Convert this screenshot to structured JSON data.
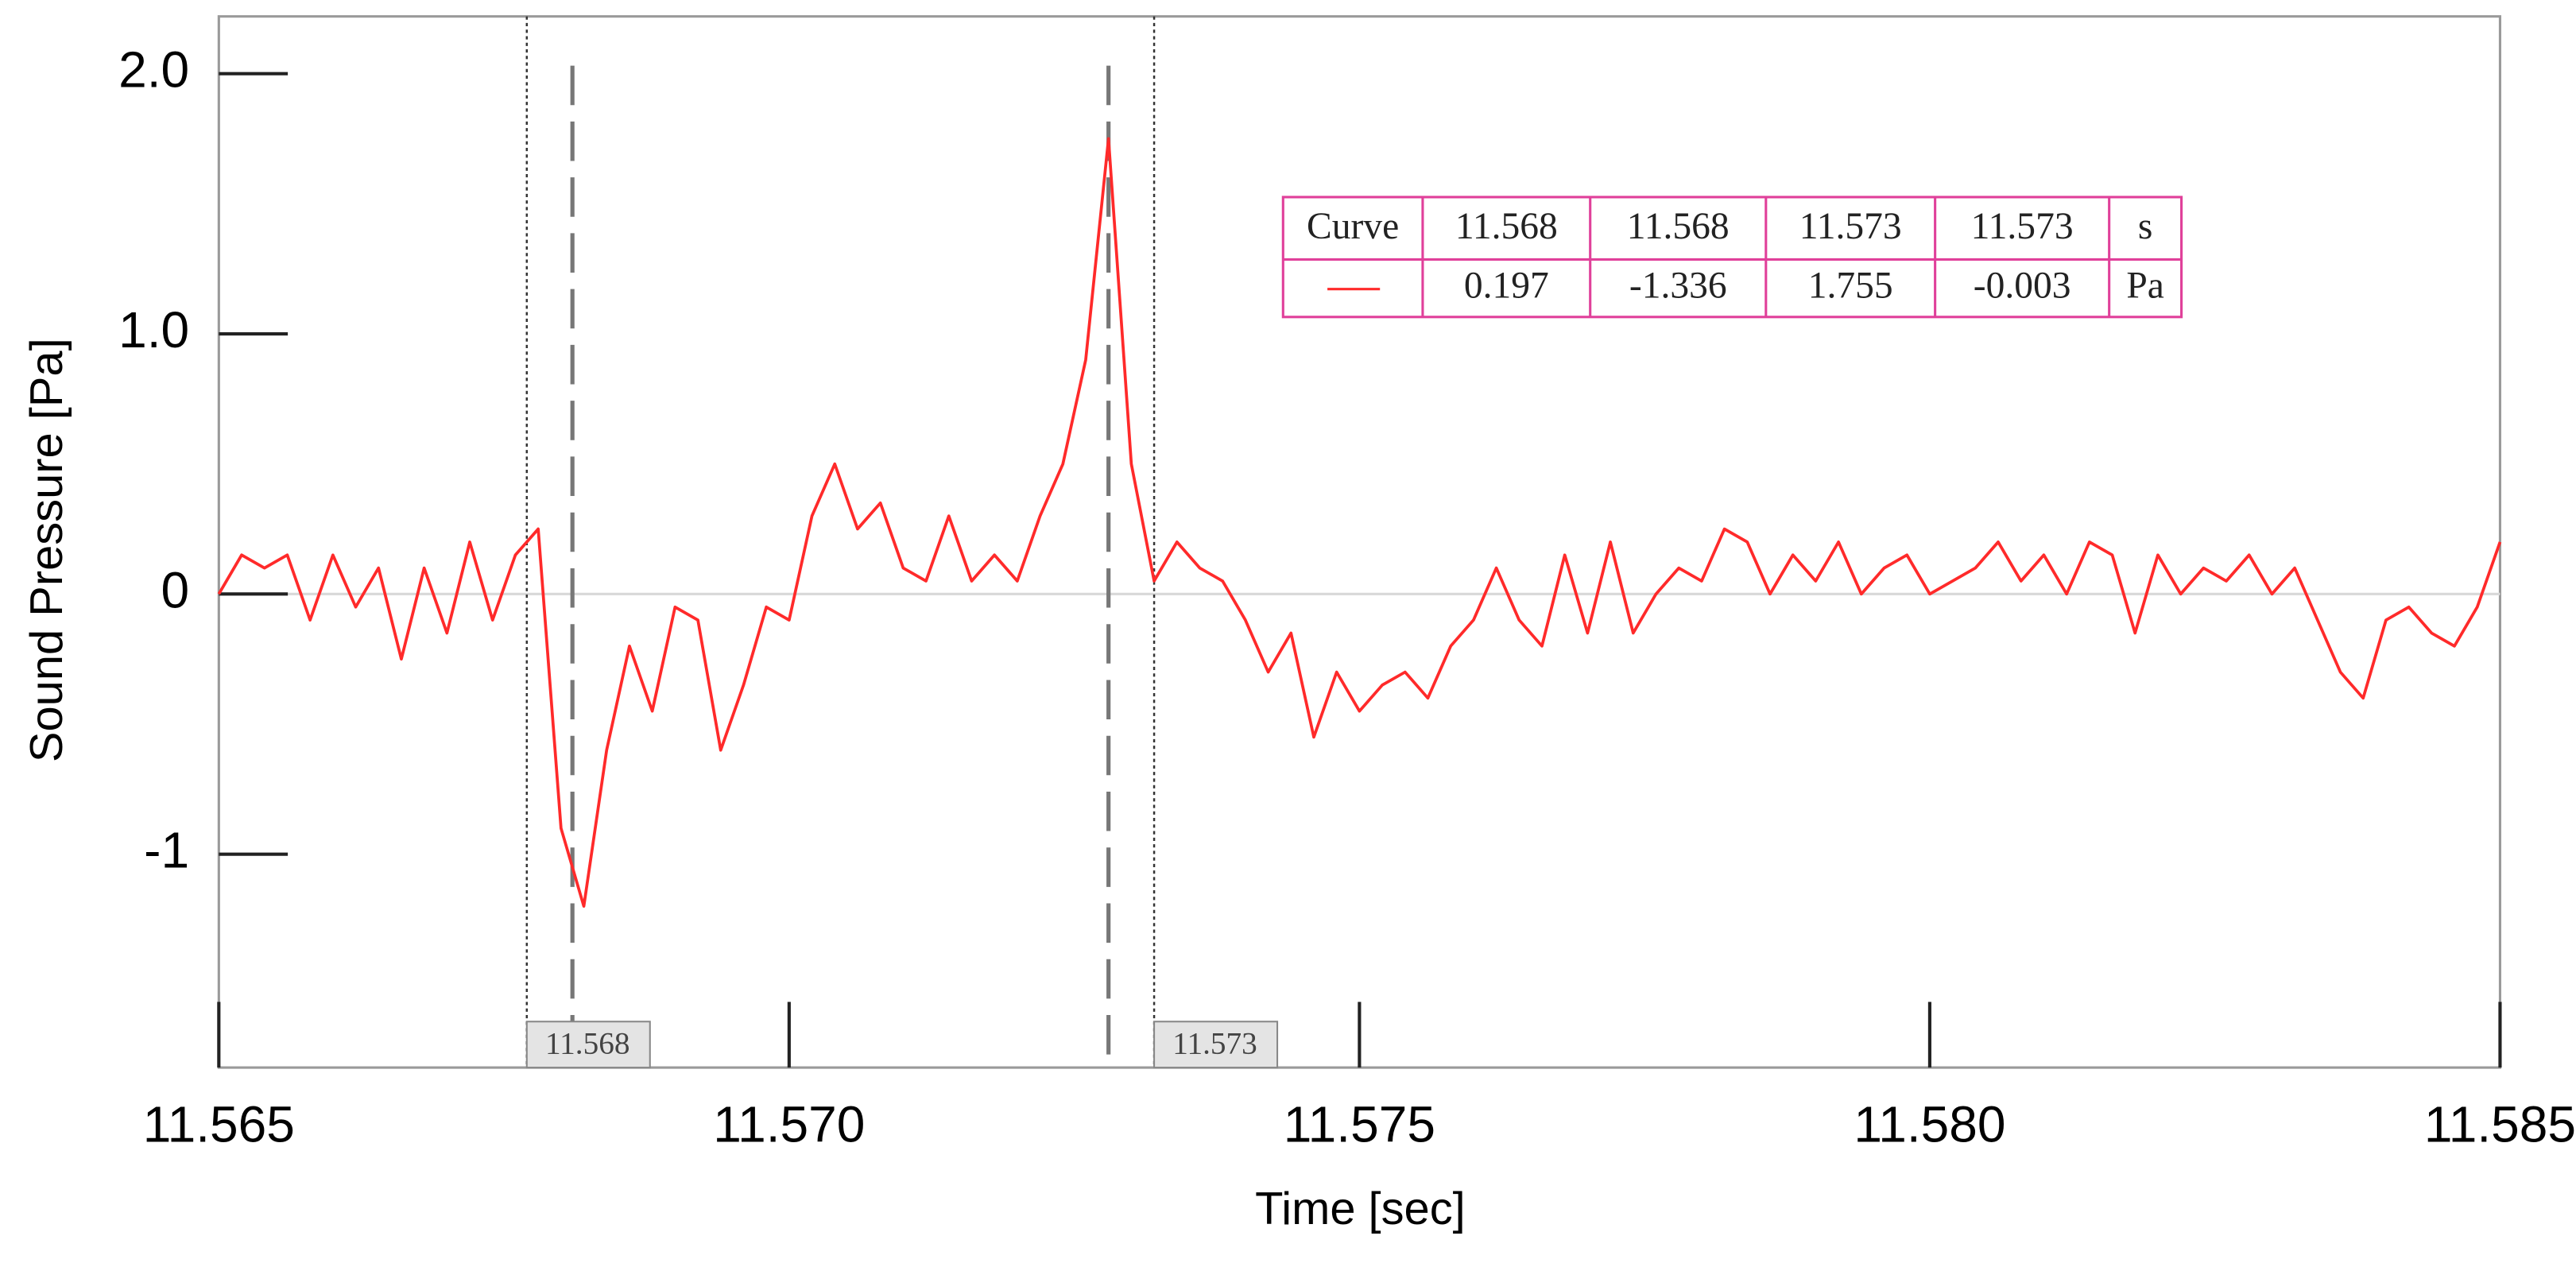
{
  "chart_data": {
    "type": "line",
    "xlabel": "Time [sec]",
    "ylabel": "Sound Pressure [Pa]",
    "x": [
      11.565,
      11.5652,
      11.5654,
      11.5656,
      11.5658,
      11.566,
      11.5662,
      11.5664,
      11.5666,
      11.5668,
      11.567,
      11.5672,
      11.5674,
      11.5676,
      11.5678,
      11.568,
      11.5682,
      11.5684,
      11.5686,
      11.5688,
      11.569,
      11.5692,
      11.5694,
      11.5696,
      11.5698,
      11.57,
      11.5702,
      11.5704,
      11.5706,
      11.5708,
      11.571,
      11.5712,
      11.5714,
      11.5716,
      11.5718,
      11.572,
      11.5722,
      11.5724,
      11.5726,
      11.5728,
      11.573,
      11.5732,
      11.5734,
      11.5736,
      11.5738,
      11.574,
      11.5742,
      11.5744,
      11.5746,
      11.5748,
      11.575,
      11.5752,
      11.5754,
      11.5756,
      11.5758,
      11.576,
      11.5762,
      11.5764,
      11.5766,
      11.5768,
      11.577,
      11.5772,
      11.5774,
      11.5776,
      11.5778,
      11.578,
      11.5782,
      11.5784,
      11.5786,
      11.5788,
      11.579,
      11.5792,
      11.5794,
      11.5796,
      11.5798,
      11.58,
      11.5802,
      11.5804,
      11.5806,
      11.5808,
      11.581,
      11.5812,
      11.5814,
      11.5816,
      11.5818,
      11.582,
      11.5822,
      11.5824,
      11.5826,
      11.5828,
      11.583,
      11.5832,
      11.5834,
      11.5836,
      11.5838,
      11.584,
      11.5842,
      11.5844,
      11.5846,
      11.5848,
      11.585
    ],
    "series": [
      {
        "color": "#ff2a2a",
        "values": [
          0.0,
          0.15,
          0.1,
          0.15,
          -0.1,
          0.15,
          -0.05,
          0.1,
          -0.25,
          0.1,
          -0.15,
          0.2,
          -0.1,
          0.15,
          0.25,
          -0.9,
          -1.2,
          -0.6,
          -0.2,
          -0.45,
          -0.05,
          -0.1,
          -0.6,
          -0.35,
          -0.05,
          -0.1,
          0.3,
          0.5,
          0.25,
          0.35,
          0.1,
          0.05,
          0.3,
          0.05,
          0.15,
          0.05,
          0.3,
          0.5,
          0.9,
          1.75,
          0.5,
          0.05,
          0.2,
          0.1,
          0.05,
          -0.1,
          -0.3,
          -0.15,
          -0.55,
          -0.3,
          -0.45,
          -0.35,
          -0.3,
          -0.4,
          -0.2,
          -0.1,
          0.1,
          -0.1,
          -0.2,
          0.15,
          -0.15,
          0.2,
          -0.15,
          0.0,
          0.1,
          0.05,
          0.25,
          0.2,
          0.0,
          0.15,
          0.05,
          0.2,
          0.0,
          0.1,
          0.15,
          0.0,
          0.05,
          0.1,
          0.2,
          0.05,
          0.15,
          0.0,
          0.2,
          0.15,
          -0.15,
          0.15,
          0.0,
          0.1,
          0.05,
          0.15,
          0.0,
          0.1,
          -0.1,
          -0.3,
          -0.4,
          -0.1,
          -0.05,
          -0.15,
          -0.2,
          -0.05,
          0.2
        ]
      }
    ],
    "xlim": [
      11.565,
      11.585
    ],
    "xticks": [
      11.565,
      {
        "value": 11.57,
        "label": "11.570"
      },
      11.575,
      {
        "value": 11.58,
        "label": "11.580"
      },
      11.585
    ],
    "ylim": [
      -1.82,
      2.22
    ],
    "yticks": [
      {
        "value": 2,
        "label": "2.0"
      },
      {
        "value": 1,
        "label": "1.0"
      },
      0,
      -1
    ],
    "zero_line": true,
    "cursors": [
      {
        "value": 11.5677,
        "label": "11.568"
      },
      {
        "value": 11.5732,
        "label": "11.573"
      }
    ],
    "markers": [
      11.5681,
      11.5728
    ],
    "cursor_table": {
      "header": [
        "Curve",
        11.568,
        11.568,
        11.573,
        11.573,
        "s"
      ],
      "row": [
        0.197,
        -1.336,
        1.755,
        -0.003,
        "Pa"
      ]
    }
  }
}
